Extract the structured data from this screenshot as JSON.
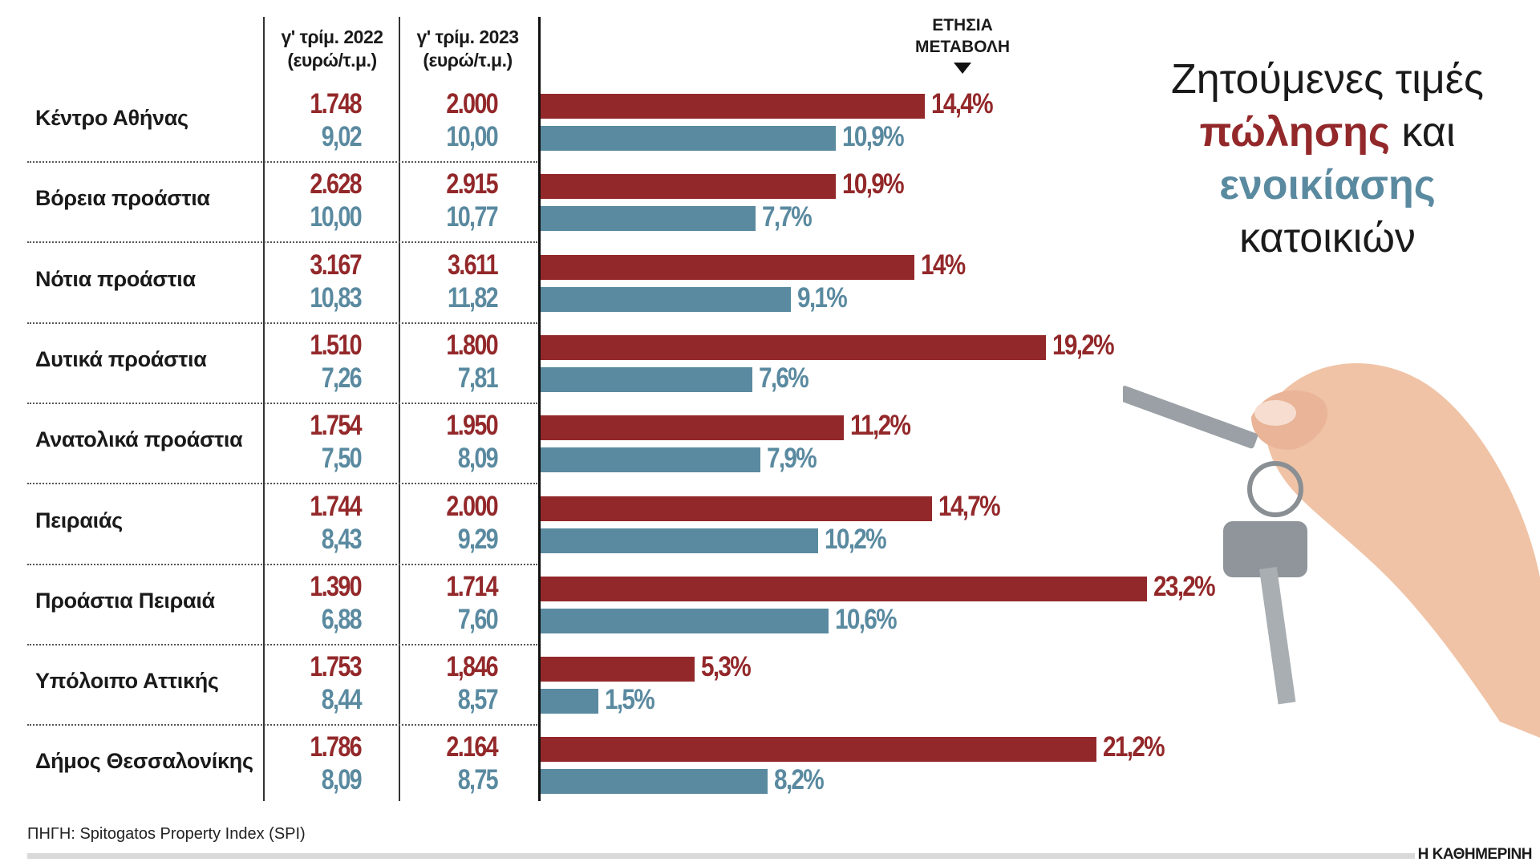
{
  "chart_data": {
    "type": "bar",
    "title": [
      "Ζητούμενες τιμές",
      "πώλησης",
      "και",
      "ενοικίασης",
      "κατοικιών"
    ],
    "columns": [
      "γ' τρίμ. 2022 (ευρώ/τ.μ.)",
      "γ' τρίμ. 2023 (ευρώ/τ.μ.)",
      "ΕΤΗΣΙΑ ΜΕΤΑΒΟΛΗ"
    ],
    "col2022": [
      "γ' τρίμ. 2022",
      "(ευρώ/τ.μ.)"
    ],
    "col2023": [
      "γ' τρίμ. 2023",
      "(ευρώ/τ.μ.)"
    ],
    "change_header": [
      "ΕΤΗΣΙΑ",
      "ΜΕΤΑΒΟΛΗ"
    ],
    "colors": {
      "sale": "#93282a",
      "rent": "#5a8aa0"
    },
    "rows": [
      {
        "region": "Κέντρο Αθήνας",
        "sale_2022": "1.748",
        "sale_2023": "2.000",
        "sale_change": 14.4,
        "sale_change_label": "14,4%",
        "rent_2022": "9,02",
        "rent_2023": "10,00",
        "rent_change": 10.9,
        "rent_change_label": "10,9%"
      },
      {
        "region": "Βόρεια προάστια",
        "sale_2022": "2.628",
        "sale_2023": "2.915",
        "sale_change": 10.9,
        "sale_change_label": "10,9%",
        "rent_2022": "10,00",
        "rent_2023": "10,77",
        "rent_change": 7.7,
        "rent_change_label": "7,7%"
      },
      {
        "region": "Νότια προάστια",
        "sale_2022": "3.167",
        "sale_2023": "3.611",
        "sale_change": 14,
        "sale_change_label": "14%",
        "rent_2022": "10,83",
        "rent_2023": "11,82",
        "rent_change": 9.1,
        "rent_change_label": "9,1%"
      },
      {
        "region": "Δυτικά προάστια",
        "sale_2022": "1.510",
        "sale_2023": "1.800",
        "sale_change": 19.2,
        "sale_change_label": "19,2%",
        "rent_2022": "7,26",
        "rent_2023": "7,81",
        "rent_change": 7.6,
        "rent_change_label": "7,6%"
      },
      {
        "region": "Ανατολικά προάστια",
        "sale_2022": "1.754",
        "sale_2023": "1.950",
        "sale_change": 11.2,
        "sale_change_label": "11,2%",
        "rent_2022": "7,50",
        "rent_2023": "8,09",
        "rent_change": 7.9,
        "rent_change_label": "7,9%"
      },
      {
        "region": "Πειραιάς",
        "sale_2022": "1.744",
        "sale_2023": "2.000",
        "sale_change": 14.7,
        "sale_change_label": "14,7%",
        "rent_2022": "8,43",
        "rent_2023": "9,29",
        "rent_change": 10.2,
        "rent_change_label": "10,2%"
      },
      {
        "region": "Προάστια Πειραιά",
        "sale_2022": "1.390",
        "sale_2023": "1.714",
        "sale_change": 23.2,
        "sale_change_label": "23,2%",
        "rent_2022": "6,88",
        "rent_2023": "7,60",
        "rent_change": 10.6,
        "rent_change_label": "10,6%"
      },
      {
        "region": "Υπόλοιπο Αττικής",
        "sale_2022": "1.753",
        "sale_2023": "1,846",
        "sale_change": 5.3,
        "sale_change_label": "5,3%",
        "rent_2022": "8,44",
        "rent_2023": "8,57",
        "rent_change": 1.5,
        "rent_change_label": "1,5%"
      },
      {
        "region": "Δήμος Θεσσαλονίκης",
        "sale_2022": "1.786",
        "sale_2023": "2.164",
        "sale_change": 21.2,
        "sale_change_label": "21,2%",
        "rent_2022": "8,09",
        "rent_2023": "8,75",
        "rent_change": 8.2,
        "rent_change_label": "8,2%"
      }
    ],
    "source": "ΠΗΓΗ: Spitogatos Property Index (SPI)",
    "publisher": "Η ΚΑΘΗΜΕΡΙΝΗ",
    "grid": false,
    "illustration": "hand-holding-keys"
  }
}
